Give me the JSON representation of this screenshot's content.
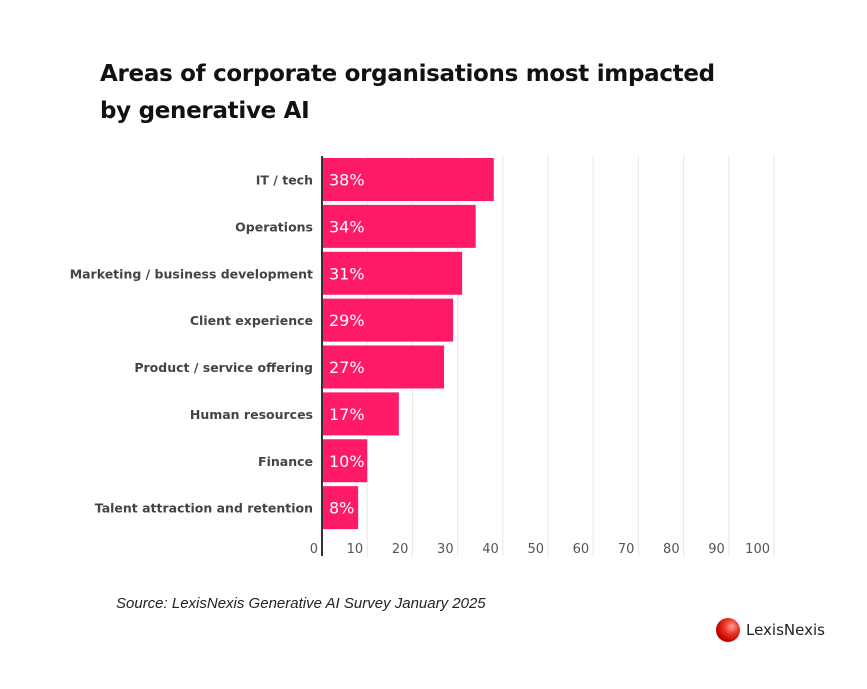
{
  "chart_data": {
    "type": "bar",
    "orientation": "horizontal",
    "title": "Areas of corporate organisations most impacted by generative AI",
    "categories": [
      "IT / tech",
      "Operations",
      "Marketing / business development",
      "Client experience",
      "Product / service offering",
      "Human resources",
      "Finance",
      "Talent attraction and retention"
    ],
    "values": [
      38,
      34,
      31,
      29,
      27,
      17,
      10,
      8
    ],
    "data_labels": [
      "38%",
      "34%",
      "31%",
      "29%",
      "27%",
      "17%",
      "10%",
      "8%"
    ],
    "xlim": [
      0,
      100
    ],
    "xticks": [
      0,
      10,
      20,
      30,
      40,
      50,
      60,
      70,
      80,
      90,
      100
    ],
    "xlabel": "",
    "ylabel": "",
    "grid": "vertical",
    "bar_color": "#ff1a66"
  },
  "source": "Source: LexisNexis Generative AI Survey January 2025",
  "logo": {
    "text": "LexisNexis",
    "mark": "®"
  }
}
